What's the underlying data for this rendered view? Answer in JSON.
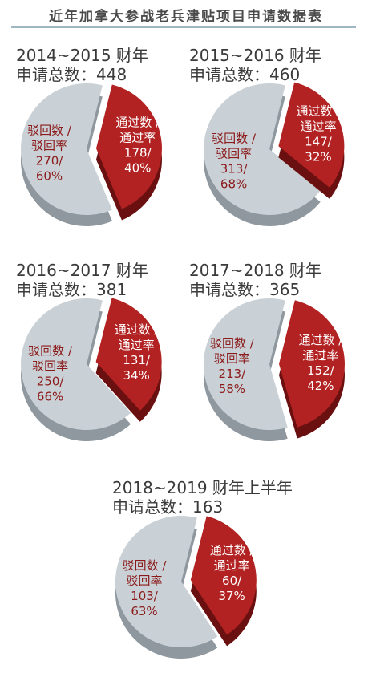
{
  "title": "近年加拿大参战老兵津贴项目申请数据表",
  "colors": {
    "pass": "#b22222",
    "pass_side": "#6b1010",
    "reject": "#c9d1d6",
    "reject_side": "#8e989e",
    "reject_text": "#8b1a1a",
    "pass_text": "#ffffff",
    "rule": "#9fb6c3"
  },
  "chart_data": [
    {
      "type": "pie",
      "title": "2014~2015 财年",
      "subtitle": "申请总数：448",
      "slices": [
        {
          "name": "通过数 / 通过率",
          "label_1": "通过数 /",
          "label_2": "通过率",
          "value": 178,
          "value_label": "178/",
          "percent_label": "40%"
        },
        {
          "name": "驳回数 / 驳回率",
          "label_1": "驳回数 /",
          "label_2": "驳回率",
          "value": 270,
          "value_label": "270/",
          "percent_label": "60%"
        }
      ]
    },
    {
      "type": "pie",
      "title": "2015~2016 财年",
      "subtitle": "申请总数：460",
      "slices": [
        {
          "name": "通过数 / 通过率",
          "label_1": "通过数 /",
          "label_2": "通过率",
          "value": 147,
          "value_label": "147/",
          "percent_label": "32%"
        },
        {
          "name": "驳回数 / 驳回率",
          "label_1": "驳回数 /",
          "label_2": "驳回率",
          "value": 313,
          "value_label": "313/",
          "percent_label": "68%"
        }
      ]
    },
    {
      "type": "pie",
      "title": "2016~2017 财年",
      "subtitle": "申请总数：381",
      "slices": [
        {
          "name": "通过数 / 通过率",
          "label_1": "通过数 /",
          "label_2": "通过率",
          "value": 131,
          "value_label": "131/",
          "percent_label": "34%"
        },
        {
          "name": "驳回数 / 驳回率",
          "label_1": "驳回数 /",
          "label_2": "驳回率",
          "value": 250,
          "value_label": "250/",
          "percent_label": "66%"
        }
      ]
    },
    {
      "type": "pie",
      "title": "2017~2018 财年",
      "subtitle": "申请总数：365",
      "slices": [
        {
          "name": "通过数 / 通过率",
          "label_1": "通过数 /",
          "label_2": "通过率",
          "value": 152,
          "value_label": "152/",
          "percent_label": "42%"
        },
        {
          "name": "驳回数 / 驳回率",
          "label_1": "驳回数 /",
          "label_2": "驳回率",
          "value": 213,
          "value_label": "213/",
          "percent_label": "58%"
        }
      ]
    },
    {
      "type": "pie",
      "title": "2018~2019 财年上半年",
      "subtitle": "申请总数：163",
      "slices": [
        {
          "name": "通过数 / 通过率",
          "label_1": "通过数 /",
          "label_2": "通过率",
          "value": 60,
          "value_label": "60/",
          "percent_label": "37%"
        },
        {
          "name": "驳回数 / 驳回率",
          "label_1": "驳回数 /",
          "label_2": "驳回率",
          "value": 103,
          "value_label": "103/",
          "percent_label": "63%"
        }
      ]
    }
  ]
}
